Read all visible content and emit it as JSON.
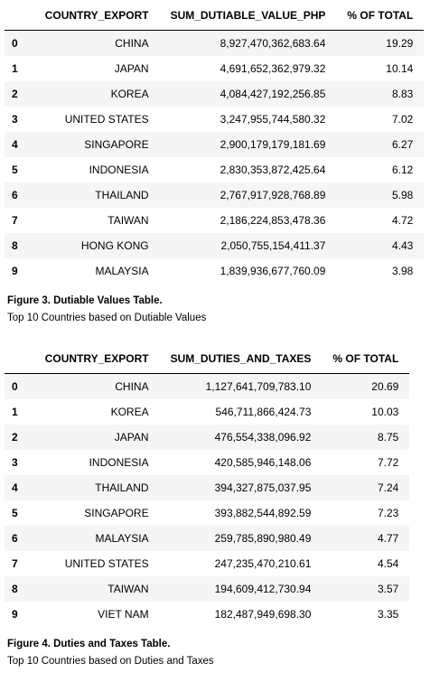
{
  "table1": {
    "headers": [
      "",
      "COUNTRY_EXPORT",
      "SUM_DUTIABLE_VALUE_PHP",
      "% OF TOTAL"
    ],
    "rows": [
      [
        "0",
        "CHINA",
        "8,927,470,362,683.64",
        "19.29"
      ],
      [
        "1",
        "JAPAN",
        "4,691,652,362,979.32",
        "10.14"
      ],
      [
        "2",
        "KOREA",
        "4,084,427,192,256.85",
        "8.83"
      ],
      [
        "3",
        "UNITED STATES",
        "3,247,955,744,580.32",
        "7.02"
      ],
      [
        "4",
        "SINGAPORE",
        "2,900,179,179,181.69",
        "6.27"
      ],
      [
        "5",
        "INDONESIA",
        "2,830,353,872,425.64",
        "6.12"
      ],
      [
        "6",
        "THAILAND",
        "2,767,917,928,768.89",
        "5.98"
      ],
      [
        "7",
        "TAIWAN",
        "2,186,224,853,478.36",
        "4.72"
      ],
      [
        "8",
        "HONG KONG",
        "2,050,755,154,411.37",
        "4.43"
      ],
      [
        "9",
        "MALAYSIA",
        "1,839,936,677,760.09",
        "3.98"
      ]
    ],
    "caption": "Figure 3. Dutiable Values Table.",
    "subcaption": "Top 10 Countries based on Dutiable Values"
  },
  "table2": {
    "headers": [
      "",
      "COUNTRY_EXPORT",
      "SUM_DUTIES_AND_TAXES",
      "% OF TOTAL"
    ],
    "rows": [
      [
        "0",
        "CHINA",
        "1,127,641,709,783.10",
        "20.69"
      ],
      [
        "1",
        "KOREA",
        "546,711,866,424.73",
        "10.03"
      ],
      [
        "2",
        "JAPAN",
        "476,554,338,096.92",
        "8.75"
      ],
      [
        "3",
        "INDONESIA",
        "420,585,946,148.06",
        "7.72"
      ],
      [
        "4",
        "THAILAND",
        "394,327,875,037.95",
        "7.24"
      ],
      [
        "5",
        "SINGAPORE",
        "393,882,544,892.59",
        "7.23"
      ],
      [
        "6",
        "MALAYSIA",
        "259,785,890,980.49",
        "4.77"
      ],
      [
        "7",
        "UNITED STATES",
        "247,235,470,210.61",
        "4.54"
      ],
      [
        "8",
        "TAIWAN",
        "194,609,412,730.94",
        "3.57"
      ],
      [
        "9",
        "VIET NAM",
        "182,487,949,698.30",
        "3.35"
      ]
    ],
    "caption": "Figure 4. Duties and Taxes Table.",
    "subcaption": "Top 10 Countries based on Duties and Taxes"
  }
}
